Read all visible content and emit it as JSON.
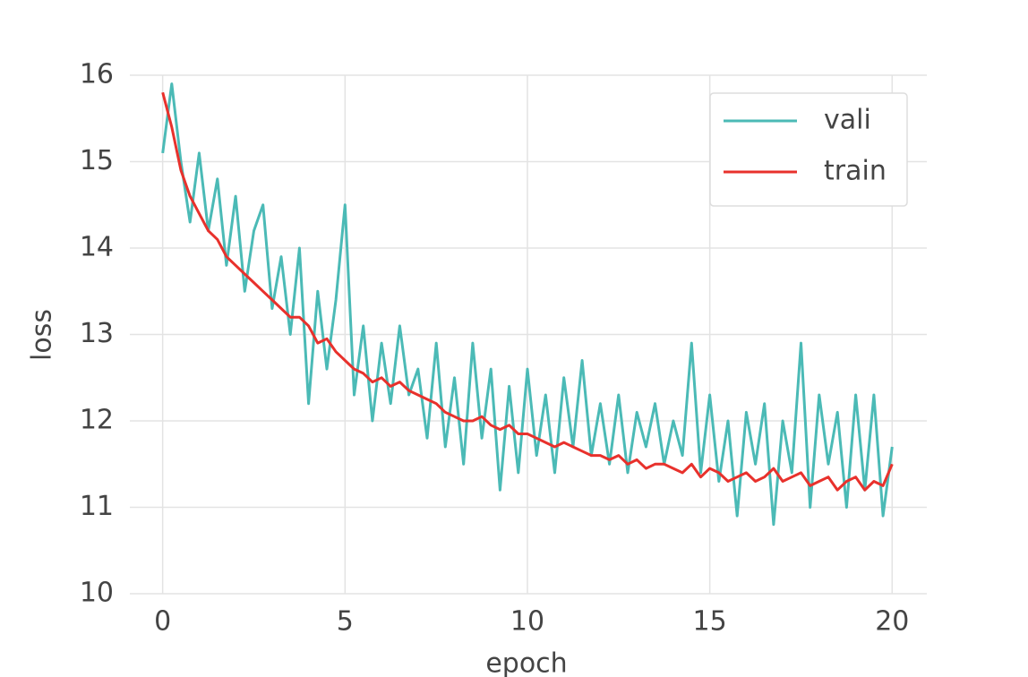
{
  "chart_data": {
    "type": "line",
    "x_label": "epoch",
    "y_label": "loss",
    "x": [
      0,
      0.25,
      0.5,
      0.75,
      1,
      1.25,
      1.5,
      1.75,
      2,
      2.25,
      2.5,
      2.75,
      3,
      3.25,
      3.5,
      3.75,
      4,
      4.25,
      4.5,
      4.75,
      5,
      5.25,
      5.5,
      5.75,
      6,
      6.25,
      6.5,
      6.75,
      7,
      7.25,
      7.5,
      7.75,
      8,
      8.25,
      8.5,
      8.75,
      9,
      9.25,
      9.5,
      9.75,
      10,
      10.25,
      10.5,
      10.75,
      11,
      11.25,
      11.5,
      11.75,
      12,
      12.25,
      12.5,
      12.75,
      13,
      13.25,
      13.5,
      13.75,
      14,
      14.25,
      14.5,
      14.75,
      15,
      15.25,
      15.5,
      15.75,
      16,
      16.25,
      16.5,
      16.75,
      17,
      17.25,
      17.5,
      17.75,
      18,
      18.25,
      18.5,
      18.75,
      19,
      19.25,
      19.5,
      19.75,
      20
    ],
    "series": [
      {
        "name": "vali",
        "color": "#4bbab6",
        "values": [
          15.1,
          15.9,
          15.0,
          14.3,
          15.1,
          14.2,
          14.8,
          13.8,
          14.6,
          13.5,
          14.2,
          14.5,
          13.3,
          13.9,
          13.0,
          14.0,
          12.2,
          13.5,
          12.6,
          13.4,
          14.5,
          12.3,
          13.1,
          12.0,
          12.9,
          12.2,
          13.1,
          12.3,
          12.6,
          11.8,
          12.9,
          11.7,
          12.5,
          11.5,
          12.9,
          11.8,
          12.6,
          11.2,
          12.4,
          11.4,
          12.6,
          11.6,
          12.3,
          11.4,
          12.5,
          11.7,
          12.7,
          11.6,
          12.2,
          11.5,
          12.3,
          11.4,
          12.1,
          11.7,
          12.2,
          11.5,
          12.0,
          11.6,
          12.9,
          11.4,
          12.3,
          11.3,
          12.0,
          10.9,
          12.1,
          11.5,
          12.2,
          10.8,
          12.0,
          11.4,
          12.9,
          11.0,
          12.3,
          11.5,
          12.1,
          11.0,
          12.3,
          11.2,
          12.3,
          10.9,
          11.7
        ]
      },
      {
        "name": "train",
        "color": "#e8312c",
        "values": [
          15.8,
          15.4,
          14.9,
          14.6,
          14.4,
          14.2,
          14.1,
          13.9,
          13.8,
          13.7,
          13.6,
          13.5,
          13.4,
          13.3,
          13.2,
          13.2,
          13.1,
          12.9,
          12.95,
          12.8,
          12.7,
          12.6,
          12.55,
          12.45,
          12.5,
          12.4,
          12.45,
          12.35,
          12.3,
          12.25,
          12.2,
          12.1,
          12.05,
          12.0,
          12.0,
          12.05,
          11.95,
          11.9,
          11.95,
          11.85,
          11.85,
          11.8,
          11.75,
          11.7,
          11.75,
          11.7,
          11.65,
          11.6,
          11.6,
          11.55,
          11.6,
          11.5,
          11.55,
          11.45,
          11.5,
          11.5,
          11.45,
          11.4,
          11.5,
          11.35,
          11.45,
          11.4,
          11.3,
          11.35,
          11.4,
          11.3,
          11.35,
          11.45,
          11.3,
          11.35,
          11.4,
          11.25,
          11.3,
          11.35,
          11.2,
          11.3,
          11.35,
          11.2,
          11.3,
          11.25,
          11.5
        ]
      }
    ],
    "xlim": [
      -0.9,
      20.95
    ],
    "ylim": [
      10,
      16
    ],
    "xticks": [
      0,
      5,
      10,
      15,
      20
    ],
    "yticks": [
      10,
      11,
      12,
      13,
      14,
      15,
      16
    ],
    "grid": true,
    "legend": "upper right"
  }
}
